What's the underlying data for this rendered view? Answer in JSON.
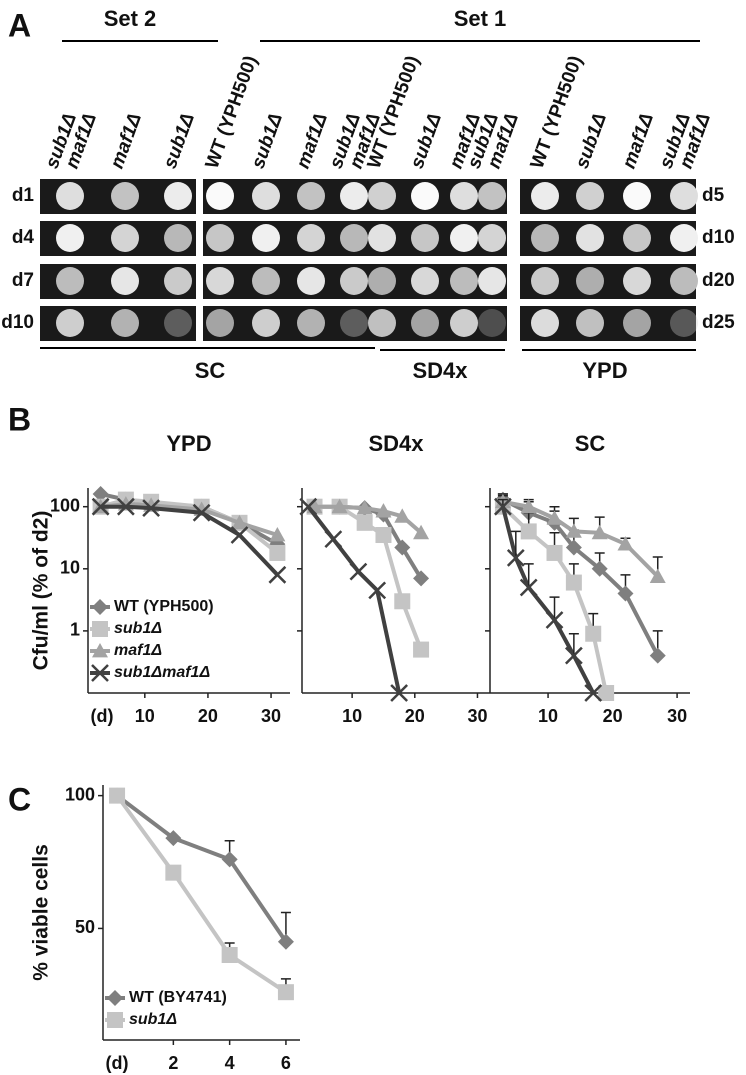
{
  "panel_a": {
    "label": "A",
    "set2": {
      "title": "Set 2",
      "columns": [
        [
          "sub1Δ",
          "maf1Δ"
        ],
        [
          "maf1Δ"
        ],
        [
          "sub1Δ"
        ]
      ]
    },
    "set1": {
      "title": "Set 1",
      "columns": [
        [
          "WT (YPH500)"
        ],
        [
          "sub1Δ"
        ],
        [
          "maf1Δ"
        ],
        [
          "sub1Δ",
          "maf1Δ"
        ],
        [
          "WT (YPH500)"
        ],
        [
          "sub1Δ"
        ],
        [
          "maf1Δ"
        ],
        [
          "sub1Δ",
          "maf1Δ"
        ],
        [
          "WT (YPH500)"
        ],
        [
          "sub1Δ"
        ],
        [
          "maf1Δ"
        ],
        [
          "sub1Δ",
          "maf1Δ"
        ]
      ]
    },
    "rows_left": [
      "d1",
      "d4",
      "d7",
      "d10"
    ],
    "rows_right": [
      "d5",
      "d10",
      "d20",
      "d25"
    ],
    "media": [
      "SC",
      "SD4x",
      "YPD"
    ]
  },
  "panel_b": {
    "label": "B"
  },
  "panel_c": {
    "label": "C"
  },
  "chart_data": [
    {
      "type": "line",
      "title": "YPD",
      "ylabel": "Cfu/ml (% of d2)",
      "xlabel": "(d)",
      "yscale": "log",
      "xlim": [
        1,
        33
      ],
      "xticks": [
        10,
        20,
        30
      ],
      "ylim": [
        0.1,
        200
      ],
      "yticks": [
        1,
        10,
        100
      ],
      "legend": "lower left",
      "series": [
        {
          "name": "WT (YPH500)",
          "color": "#7f7f7f",
          "marker": "diamond",
          "x": [
            3,
            7,
            11,
            19,
            25,
            31
          ],
          "values": [
            160,
            130,
            115,
            100,
            55,
            25
          ]
        },
        {
          "name": "sub1Δ",
          "color": "#c4c4c4",
          "marker": "square",
          "x": [
            3,
            7,
            11,
            19,
            25,
            31
          ],
          "values": [
            100,
            130,
            120,
            100,
            55,
            18
          ]
        },
        {
          "name": "maf1Δ",
          "color": "#a3a3a3",
          "marker": "triangle",
          "x": [
            3,
            7,
            11,
            19,
            25,
            31
          ],
          "values": [
            100,
            110,
            105,
            90,
            55,
            35
          ]
        },
        {
          "name": "sub1Δmaf1Δ",
          "color": "#404040",
          "marker": "x",
          "x": [
            3,
            7,
            11,
            19,
            25,
            31
          ],
          "values": [
            100,
            100,
            95,
            80,
            35,
            8
          ]
        }
      ]
    },
    {
      "type": "line",
      "title": "SD4x",
      "yscale": "log",
      "ytick_labels": false,
      "xlim": [
        2,
        32
      ],
      "xticks": [
        10,
        20,
        30
      ],
      "ylim": [
        0.1,
        200
      ],
      "yticks": [
        1,
        10,
        100
      ],
      "series": [
        {
          "color": "#7f7f7f",
          "marker": "diamond",
          "x": [
            4,
            8,
            12,
            15,
            18,
            21
          ],
          "values": [
            100,
            100,
            95,
            75,
            22,
            7
          ]
        },
        {
          "color": "#c4c4c4",
          "marker": "square",
          "x": [
            4,
            8,
            12,
            15,
            18,
            21
          ],
          "values": [
            100,
            100,
            55,
            35,
            3,
            0.5
          ]
        },
        {
          "color": "#a3a3a3",
          "marker": "triangle",
          "x": [
            4,
            8,
            12,
            15,
            18,
            21
          ],
          "values": [
            100,
            100,
            95,
            85,
            70,
            38
          ]
        },
        {
          "color": "#404040",
          "marker": "x",
          "x": [
            3,
            7,
            11,
            14,
            17.5
          ],
          "values": [
            100,
            30,
            9,
            4.5,
            0.1
          ]
        }
      ]
    },
    {
      "type": "line",
      "title": "SC",
      "yscale": "log",
      "ytick_labels": false,
      "xlim": [
        1,
        32
      ],
      "xticks": [
        10,
        20,
        30
      ],
      "ylim": [
        0.1,
        200
      ],
      "yticks": [
        1,
        10,
        100
      ],
      "series": [
        {
          "color": "#7f7f7f",
          "marker": "diamond",
          "x": [
            3,
            7,
            11,
            14,
            18,
            22,
            27
          ],
          "values": [
            130,
            80,
            55,
            22,
            10,
            4,
            0.4
          ],
          "errors": [
            30,
            40,
            30,
            20,
            8,
            4,
            0.6
          ]
        },
        {
          "color": "#c4c4c4",
          "marker": "square",
          "x": [
            3,
            7,
            11,
            14,
            17,
            19
          ],
          "values": [
            100,
            40,
            18,
            6,
            0.9,
            0.1
          ],
          "errors": [
            50,
            40,
            20,
            6,
            1,
            null
          ]
        },
        {
          "color": "#a3a3a3",
          "marker": "triangle",
          "x": [
            3,
            7,
            11,
            14,
            18,
            22,
            27
          ],
          "values": [
            120,
            100,
            65,
            40,
            38,
            25,
            7.5
          ],
          "errors": [
            40,
            30,
            35,
            25,
            30,
            6,
            8
          ]
        },
        {
          "color": "#404040",
          "marker": "x",
          "x": [
            3,
            5,
            7,
            11,
            14,
            17
          ],
          "values": [
            100,
            15,
            5,
            1.5,
            0.4,
            0.1
          ],
          "errors": [
            30,
            25,
            7,
            2,
            0.5,
            null
          ]
        }
      ]
    },
    {
      "type": "line",
      "ylabel": "% viable cells",
      "xlabel": "(d)",
      "xlim": [
        -0.5,
        6.5
      ],
      "xticks": [
        2,
        4,
        6
      ],
      "ylim": [
        8,
        104
      ],
      "yticks": [
        50,
        100
      ],
      "legend": "lower left",
      "series": [
        {
          "name": "WT (BY4741)",
          "color": "#7f7f7f",
          "marker": "diamond",
          "x": [
            0,
            2,
            4,
            6
          ],
          "values": [
            100,
            84,
            76,
            45
          ],
          "errors": [
            null,
            null,
            7,
            11
          ]
        },
        {
          "name": "sub1Δ",
          "color": "#c4c4c4",
          "marker": "square",
          "x": [
            0,
            2,
            4,
            6
          ],
          "values": [
            100,
            71,
            40,
            26
          ],
          "errors": [
            null,
            null,
            4.5,
            5
          ]
        }
      ]
    }
  ]
}
